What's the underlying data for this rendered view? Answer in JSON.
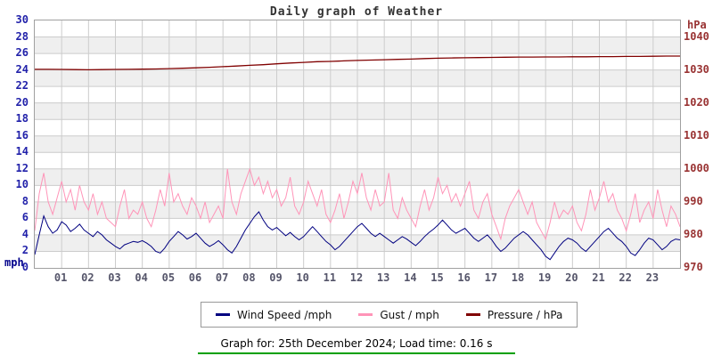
{
  "title": "Daily graph of Weather",
  "footer": {
    "text": "Graph for: 25th December 2024; Load time: 0.16 s",
    "rule_color": "#00a000"
  },
  "legend": {
    "items": [
      {
        "label": "Wind Speed /mph",
        "color": "#000080"
      },
      {
        "label": "Gust / mph",
        "color": "#ff94b8"
      },
      {
        "label": "Pressure / hPa",
        "color": "#800000"
      }
    ]
  },
  "colors": {
    "band_gray": "#efefef",
    "grid": "#cccccc",
    "plot_border": "#a0a0a0",
    "left_tick": "#2222aa",
    "right_tick": "#993333",
    "x_tick": "#55556a"
  },
  "chart_data": {
    "type": "line",
    "title": "Daily graph of Weather",
    "x_range_hours": [
      0,
      24
    ],
    "x_tick_labels": [
      "01",
      "02",
      "03",
      "04",
      "05",
      "06",
      "07",
      "08",
      "09",
      "10",
      "11",
      "12",
      "13",
      "14",
      "15",
      "16",
      "17",
      "18",
      "19",
      "20",
      "21",
      "22",
      "23"
    ],
    "grid": true,
    "legend_position": "bottom",
    "left_axis": {
      "label": "mph",
      "min": 0,
      "max": 30,
      "tick_step": 2
    },
    "right_axis": {
      "label": "hPa",
      "ticks": [
        970,
        980,
        990,
        1000,
        1010,
        1020,
        1030,
        1040
      ],
      "left_units_per_tick": 4
    },
    "series": [
      {
        "name": "Wind Speed /mph",
        "axis": "left",
        "color": "#000080",
        "values": [
          1.6,
          4.0,
          6.3,
          5.0,
          4.2,
          4.6,
          5.6,
          5.2,
          4.4,
          4.8,
          5.3,
          4.6,
          4.2,
          3.8,
          4.4,
          4.0,
          3.4,
          3.0,
          2.6,
          2.3,
          2.8,
          3.0,
          3.2,
          3.1,
          3.3,
          3.0,
          2.6,
          2.0,
          1.8,
          2.4,
          3.2,
          3.8,
          4.4,
          4.0,
          3.5,
          3.8,
          4.2,
          3.6,
          3.0,
          2.6,
          2.9,
          3.3,
          2.8,
          2.2,
          1.8,
          2.6,
          3.6,
          4.6,
          5.4,
          6.2,
          6.8,
          5.8,
          5.0,
          4.6,
          4.9,
          4.4,
          3.9,
          4.3,
          3.8,
          3.4,
          3.8,
          4.4,
          5.0,
          4.4,
          3.8,
          3.2,
          2.8,
          2.2,
          2.6,
          3.2,
          3.8,
          4.4,
          5.0,
          5.4,
          4.8,
          4.2,
          3.8,
          4.2,
          3.8,
          3.4,
          3.0,
          3.4,
          3.8,
          3.5,
          3.1,
          2.7,
          3.2,
          3.8,
          4.3,
          4.7,
          5.2,
          5.8,
          5.2,
          4.6,
          4.2,
          4.5,
          4.8,
          4.2,
          3.6,
          3.2,
          3.6,
          4.0,
          3.4,
          2.6,
          2.0,
          2.4,
          3.0,
          3.6,
          4.0,
          4.4,
          4.0,
          3.4,
          2.8,
          2.2,
          1.4,
          1.0,
          1.8,
          2.6,
          3.2,
          3.6,
          3.4,
          3.0,
          2.4,
          2.0,
          2.6,
          3.2,
          3.8,
          4.4,
          4.8,
          4.2,
          3.6,
          3.2,
          2.6,
          1.8,
          1.5,
          2.2,
          3.0,
          3.6,
          3.4,
          2.8,
          2.2,
          2.6,
          3.2,
          3.5,
          3.4
        ]
      },
      {
        "name": "Gust / mph",
        "axis": "left",
        "color": "#ff94b8",
        "values": [
          4.5,
          9.0,
          11.5,
          8.0,
          6.5,
          8.5,
          10.5,
          8.0,
          9.5,
          7.0,
          10.0,
          8.0,
          7.0,
          9.0,
          6.5,
          8.0,
          6.0,
          5.5,
          5.0,
          7.5,
          9.5,
          6.0,
          7.0,
          6.5,
          8.0,
          6.0,
          5.0,
          7.0,
          9.5,
          7.5,
          11.5,
          8.0,
          9.0,
          7.5,
          6.5,
          8.5,
          7.5,
          6.0,
          8.0,
          5.5,
          6.5,
          7.5,
          6.0,
          12.0,
          8.0,
          6.5,
          9.0,
          10.5,
          12.0,
          10.0,
          11.0,
          9.0,
          10.5,
          8.5,
          9.5,
          7.5,
          8.5,
          11.0,
          7.5,
          6.5,
          8.0,
          10.5,
          9.0,
          7.5,
          9.5,
          6.5,
          5.5,
          7.0,
          9.0,
          6.0,
          8.0,
          10.5,
          9.0,
          11.5,
          8.5,
          7.0,
          9.5,
          7.5,
          8.0,
          11.5,
          7.0,
          6.0,
          8.5,
          7.0,
          6.0,
          5.0,
          7.5,
          9.5,
          7.0,
          8.5,
          11.0,
          9.0,
          10.0,
          8.0,
          9.0,
          7.5,
          9.0,
          10.5,
          7.0,
          6.0,
          8.0,
          9.0,
          6.5,
          5.0,
          3.5,
          6.0,
          7.5,
          8.5,
          9.5,
          8.0,
          6.5,
          8.0,
          5.5,
          4.5,
          3.5,
          5.5,
          8.0,
          6.0,
          7.0,
          6.5,
          7.5,
          5.5,
          4.5,
          6.5,
          9.5,
          7.0,
          8.5,
          10.5,
          8.0,
          9.0,
          7.0,
          6.0,
          4.5,
          6.5,
          9.0,
          5.5,
          7.0,
          8.0,
          6.0,
          9.5,
          7.0,
          5.0,
          7.5,
          6.5,
          5.0
        ]
      },
      {
        "name": "Pressure / hPa",
        "axis": "right",
        "color": "#800000",
        "values": [
          1030.2,
          1030.2,
          1030.15,
          1030.1,
          1030.05,
          1030.1,
          1030.15,
          1030.2,
          1030.25,
          1030.3,
          1030.4,
          1030.5,
          1030.65,
          1030.8,
          1031.0,
          1031.2,
          1031.4,
          1031.6,
          1031.85,
          1032.1,
          1032.3,
          1032.5,
          1032.6,
          1032.75,
          1032.9,
          1033.0,
          1033.1,
          1033.2,
          1033.3,
          1033.45,
          1033.55,
          1033.65,
          1033.7,
          1033.75,
          1033.8,
          1033.85,
          1033.9,
          1033.9,
          1033.95,
          1033.95,
          1034.0,
          1034.0,
          1034.05,
          1034.05,
          1034.1,
          1034.1,
          1034.15,
          1034.2,
          1034.2
        ]
      }
    ]
  }
}
